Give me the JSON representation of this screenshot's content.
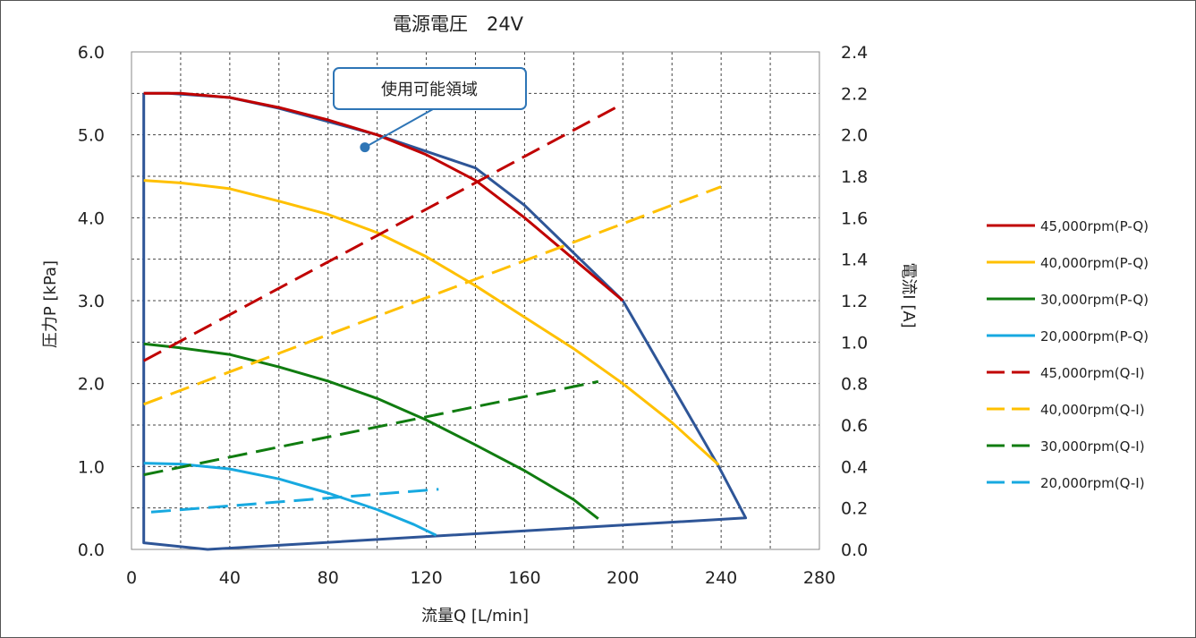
{
  "chart_data": {
    "type": "line",
    "title": "電源電圧　24V",
    "xlabel": "流量Q [L/min]",
    "ylabel": "圧力P [kPa]",
    "y2label": "電流I [A]",
    "xlim": [
      0,
      280
    ],
    "ylim": [
      0,
      6
    ],
    "y2lim": [
      0,
      2.4
    ],
    "xticks": [
      0,
      40,
      80,
      120,
      160,
      200,
      240,
      280
    ],
    "yticks": [
      "0.0",
      "1.0",
      "2.0",
      "3.0",
      "4.0",
      "5.0",
      "6.0"
    ],
    "y2ticks": [
      "0.0",
      "0.2",
      "0.4",
      "0.6",
      "0.8",
      "1.0",
      "1.2",
      "1.4",
      "1.6",
      "1.8",
      "2.0",
      "2.2",
      "2.4"
    ],
    "grid": true,
    "legend_position": "right",
    "annotation": {
      "text": "使用可能領域",
      "point": [
        95,
        4.85
      ]
    },
    "region": {
      "color": "#2e5597",
      "points": [
        [
          5,
          5.5
        ],
        [
          5,
          0.08
        ],
        [
          31,
          0
        ],
        [
          250,
          0.38
        ],
        [
          239,
          1.0
        ],
        [
          200,
          3.0
        ],
        [
          160,
          4.15
        ],
        [
          140,
          4.6
        ],
        [
          120,
          4.8
        ],
        [
          100,
          5.0
        ],
        [
          60,
          5.32
        ],
        [
          40,
          5.45
        ],
        [
          15,
          5.5
        ],
        [
          5,
          5.5
        ]
      ]
    },
    "series": [
      {
        "name": "45,000rpm(P-Q)",
        "axis": "left",
        "style": "solid",
        "color": "#c00000",
        "x": [
          5,
          20,
          40,
          60,
          80,
          100,
          120,
          140,
          160,
          180,
          200
        ],
        "y": [
          5.5,
          5.5,
          5.45,
          5.33,
          5.18,
          5.0,
          4.76,
          4.45,
          4.0,
          3.5,
          3.0
        ]
      },
      {
        "name": "40,000rpm(P-Q)",
        "axis": "left",
        "style": "solid",
        "color": "#ffc000",
        "x": [
          5,
          20,
          40,
          60,
          80,
          100,
          120,
          140,
          160,
          180,
          200,
          220,
          239
        ],
        "y": [
          4.45,
          4.42,
          4.35,
          4.2,
          4.04,
          3.82,
          3.53,
          3.18,
          2.8,
          2.42,
          2.0,
          1.53,
          1.02
        ]
      },
      {
        "name": "30,000rpm(P-Q)",
        "axis": "left",
        "style": "solid",
        "color": "#107c10",
        "x": [
          5,
          20,
          40,
          60,
          80,
          100,
          120,
          140,
          160,
          180,
          190
        ],
        "y": [
          2.48,
          2.43,
          2.35,
          2.2,
          2.03,
          1.82,
          1.56,
          1.26,
          0.95,
          0.6,
          0.37
        ]
      },
      {
        "name": "20,000rpm(P-Q)",
        "axis": "left",
        "style": "solid",
        "color": "#17a9e0",
        "x": [
          5,
          20,
          40,
          60,
          80,
          100,
          115,
          124
        ],
        "y": [
          1.04,
          1.03,
          0.97,
          0.85,
          0.68,
          0.48,
          0.3,
          0.17
        ]
      },
      {
        "name": "45,000rpm(Q-I)",
        "axis": "right",
        "style": "dashed",
        "color": "#c00000",
        "x": [
          5,
          200
        ],
        "y": [
          0.91,
          2.15
        ]
      },
      {
        "name": "40,000rpm(Q-I)",
        "axis": "right",
        "style": "dashed",
        "color": "#ffc000",
        "x": [
          5,
          240
        ],
        "y": [
          0.7,
          1.75
        ]
      },
      {
        "name": "30,000rpm(Q-I)",
        "axis": "right",
        "style": "dashed",
        "color": "#107c10",
        "x": [
          5,
          190
        ],
        "y": [
          0.36,
          0.81
        ]
      },
      {
        "name": "20,000rpm(Q-I)",
        "axis": "right",
        "style": "dashed",
        "color": "#17a9e0",
        "x": [
          8,
          125
        ],
        "y": [
          0.18,
          0.29
        ]
      }
    ]
  }
}
